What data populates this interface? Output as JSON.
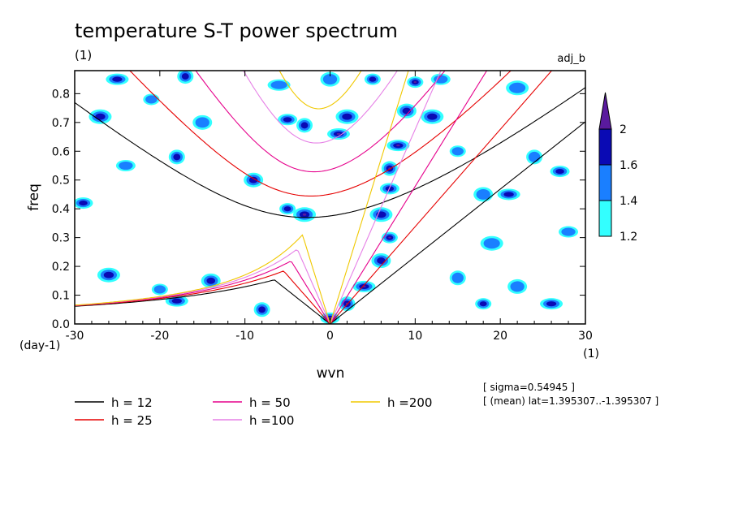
{
  "chart_data": {
    "type": "heatmap",
    "title": "temperature S-T power spectrum",
    "unit_label": "(1)",
    "experiment_label": "adj_b",
    "xlabel": "wvn",
    "ylabel": "freq",
    "x_unit": "(1)",
    "y_unit": "(day-1)",
    "xlim": [
      -30,
      30
    ],
    "ylim": [
      0,
      0.88
    ],
    "x_ticks": [
      -30,
      -20,
      -10,
      0,
      10,
      20,
      30
    ],
    "x_tick_labels": [
      "-30",
      "-20",
      "-10",
      "0",
      "10",
      "20",
      "30"
    ],
    "y_ticks": [
      0,
      0.1,
      0.2,
      0.3,
      0.4,
      0.5,
      0.6,
      0.7,
      0.8
    ],
    "y_tick_labels": [
      "0.0",
      "0.1",
      "0.2",
      "0.3",
      "0.4",
      "0.5",
      "0.6",
      "0.7",
      "0.8"
    ],
    "colorbar": {
      "levels": [
        1.2,
        1.4,
        1.6,
        2
      ],
      "level_labels": [
        "1.2",
        "1.4",
        "1.6",
        "2"
      ],
      "colors": [
        "#33ffff",
        "#1a7fff",
        "#0a0ab4",
        "#5a1a9e"
      ],
      "extend": "max"
    },
    "dispersion_curves": [
      {
        "name": "h = 12",
        "h": 12,
        "color": "#000000"
      },
      {
        "name": "h = 25",
        "h": 25,
        "color": "#e60000"
      },
      {
        "name": "h = 50",
        "h": 50,
        "color": "#e6008c"
      },
      {
        "name": "h =100",
        "h": 100,
        "color": "#e680e6"
      },
      {
        "name": "h =200",
        "h": 200,
        "color": "#f0c800"
      }
    ],
    "annotations": [
      "[ sigma=0.54945 ]",
      "[ (mean) lat=1.395307..-1.395307 ]"
    ],
    "spectral_peaks": [
      {
        "wvn": 10,
        "freq": 0.84,
        "level": 2
      },
      {
        "wvn": 9,
        "freq": 0.74,
        "level": 1.6
      },
      {
        "wvn": 8,
        "freq": 0.62,
        "level": 2
      },
      {
        "wvn": 7,
        "freq": 0.54,
        "level": 2
      },
      {
        "wvn": 7,
        "freq": 0.47,
        "level": 1.6
      },
      {
        "wvn": 6,
        "freq": 0.38,
        "level": 1.6
      },
      {
        "wvn": 7,
        "freq": 0.3,
        "level": 2
      },
      {
        "wvn": 6,
        "freq": 0.22,
        "level": 1.6
      },
      {
        "wvn": 4,
        "freq": 0.13,
        "level": 2
      },
      {
        "wvn": 2,
        "freq": 0.07,
        "level": 2
      },
      {
        "wvn": 0,
        "freq": 0.02,
        "level": 2
      },
      {
        "wvn": -3,
        "freq": 0.38,
        "level": 2
      },
      {
        "wvn": -5,
        "freq": 0.4,
        "level": 1.6
      },
      {
        "wvn": -9,
        "freq": 0.5,
        "level": 1.6
      },
      {
        "wvn": 1,
        "freq": 0.66,
        "level": 2
      },
      {
        "wvn": -3,
        "freq": 0.69,
        "level": 1.6
      },
      {
        "wvn": -5,
        "freq": 0.71,
        "level": 1.6
      },
      {
        "wvn": 2,
        "freq": 0.72,
        "level": 1.6
      },
      {
        "wvn": 5,
        "freq": 0.85,
        "level": 1.6
      },
      {
        "wvn": 0,
        "freq": 0.85,
        "level": 1.4
      },
      {
        "wvn": -6,
        "freq": 0.83,
        "level": 1.4
      },
      {
        "wvn": -18,
        "freq": 0.58,
        "level": 1.6
      },
      {
        "wvn": -24,
        "freq": 0.55,
        "level": 1.4
      },
      {
        "wvn": -26,
        "freq": 0.17,
        "level": 1.6
      },
      {
        "wvn": -20,
        "freq": 0.12,
        "level": 1.4
      },
      {
        "wvn": -14,
        "freq": 0.15,
        "level": 1.6
      },
      {
        "wvn": -18,
        "freq": 0.08,
        "level": 1.6
      },
      {
        "wvn": -8,
        "freq": 0.05,
        "level": 1.6
      },
      {
        "wvn": -29,
        "freq": 0.42,
        "level": 1.6
      },
      {
        "wvn": -27,
        "freq": 0.72,
        "level": 1.6
      },
      {
        "wvn": -21,
        "freq": 0.78,
        "level": 1.4
      },
      {
        "wvn": -15,
        "freq": 0.7,
        "level": 1.4
      },
      {
        "wvn": -25,
        "freq": 0.85,
        "level": 1.6
      },
      {
        "wvn": -17,
        "freq": 0.86,
        "level": 1.6
      },
      {
        "wvn": 13,
        "freq": 0.85,
        "level": 1.4
      },
      {
        "wvn": 12,
        "freq": 0.72,
        "level": 1.6
      },
      {
        "wvn": 15,
        "freq": 0.6,
        "level": 1.4
      },
      {
        "wvn": 18,
        "freq": 0.45,
        "level": 1.4
      },
      {
        "wvn": 21,
        "freq": 0.45,
        "level": 1.6
      },
      {
        "wvn": 24,
        "freq": 0.58,
        "level": 1.4
      },
      {
        "wvn": 27,
        "freq": 0.53,
        "level": 1.6
      },
      {
        "wvn": 22,
        "freq": 0.82,
        "level": 1.4
      },
      {
        "wvn": 18,
        "freq": 0.07,
        "level": 1.6
      },
      {
        "wvn": 22,
        "freq": 0.13,
        "level": 1.4
      },
      {
        "wvn": 26,
        "freq": 0.07,
        "level": 1.6
      },
      {
        "wvn": 15,
        "freq": 0.16,
        "level": 1.4
      },
      {
        "wvn": 28,
        "freq": 0.32,
        "level": 1.4
      },
      {
        "wvn": 19,
        "freq": 0.28,
        "level": 1.4
      }
    ]
  }
}
